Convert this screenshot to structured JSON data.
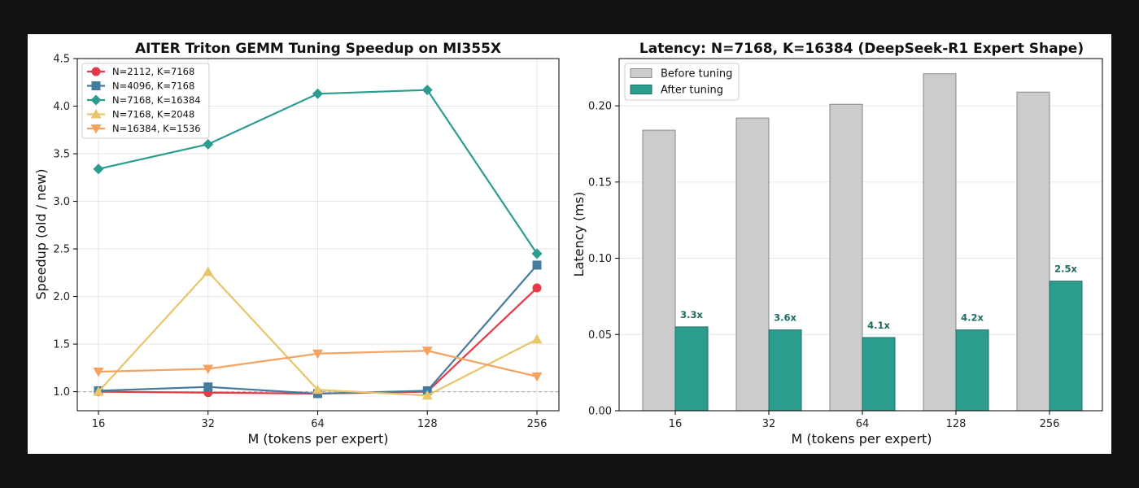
{
  "chart_data": [
    {
      "type": "line",
      "title": "AITER Triton GEMM Tuning Speedup on MI355X",
      "xlabel": "M (tokens per expert)",
      "ylabel": "Speedup (old / new)",
      "x": [
        "16",
        "32",
        "64",
        "128",
        "256"
      ],
      "ylim": [
        0.8,
        4.5
      ],
      "yticks": [
        "1.0",
        "1.5",
        "2.0",
        "2.5",
        "3.0",
        "3.5",
        "4.0",
        "4.5"
      ],
      "grid": true,
      "reference_line": 1.0,
      "legend_position": "top-left",
      "series": [
        {
          "name": "N=2112, K=7168",
          "values": [
            1.0,
            0.99,
            0.98,
            1.0,
            2.09
          ],
          "color": "#e63946",
          "marker": "circle"
        },
        {
          "name": "N=4096, K=7168",
          "values": [
            1.01,
            1.05,
            0.98,
            1.01,
            2.33
          ],
          "color": "#457b9d",
          "marker": "square"
        },
        {
          "name": "N=7168, K=16384",
          "values": [
            3.34,
            3.6,
            4.13,
            4.17,
            2.45
          ],
          "color": "#2a9d8f",
          "marker": "diamond"
        },
        {
          "name": "N=7168, K=2048",
          "values": [
            1.0,
            2.26,
            1.02,
            0.96,
            1.55
          ],
          "color": "#e9c46a",
          "marker": "triangle-up"
        },
        {
          "name": "N=16384, K=1536",
          "values": [
            1.21,
            1.24,
            1.4,
            1.43,
            1.16
          ],
          "color": "#f4a261",
          "marker": "triangle-down"
        }
      ]
    },
    {
      "type": "bar",
      "title": "Latency: N=7168, K=16384 (DeepSeek-R1 Expert Shape)",
      "xlabel": "M (tokens per expert)",
      "ylabel": "Latency (ms)",
      "categories": [
        "16",
        "32",
        "64",
        "128",
        "256"
      ],
      "ylim": [
        0,
        0.231
      ],
      "yticks": [
        "0.00",
        "0.05",
        "0.10",
        "0.15",
        "0.20"
      ],
      "grid": true,
      "legend_position": "top-left",
      "series": [
        {
          "name": "Before tuning",
          "values": [
            0.184,
            0.192,
            0.201,
            0.221,
            0.209
          ],
          "color": "#cccccc"
        },
        {
          "name": "After tuning",
          "values": [
            0.055,
            0.053,
            0.048,
            0.053,
            0.085
          ],
          "color": "#2a9d8f"
        }
      ],
      "bar_labels": [
        "3.3x",
        "3.6x",
        "4.1x",
        "4.2x",
        "2.5x"
      ]
    }
  ]
}
